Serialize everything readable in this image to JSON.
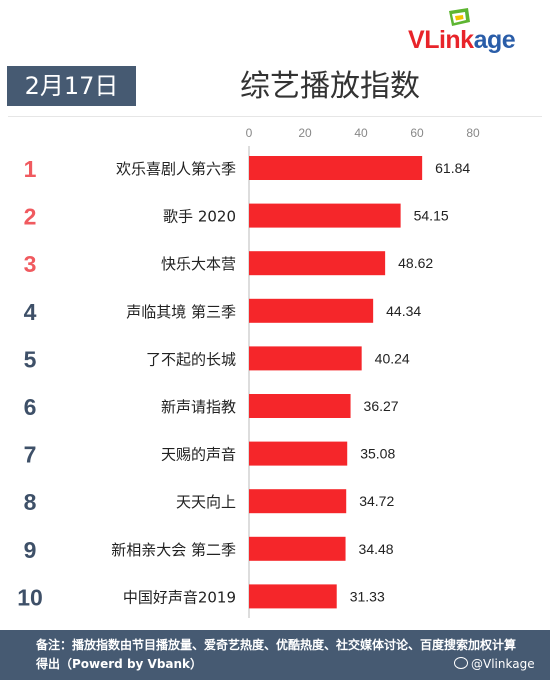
{
  "brand": {
    "logo_text": "VLinkage",
    "logo_parts": {
      "v": "V",
      "link": "Link",
      "age": "age"
    },
    "colors": {
      "v": "#e8242a",
      "link": "#e8242a",
      "age": "#2a5da8",
      "mark_green": "#5db531",
      "mark_yellow": "#f2c200"
    }
  },
  "header": {
    "date": "2月17日",
    "title": "综艺播放指数"
  },
  "chart_data": {
    "type": "bar",
    "orientation": "horizontal",
    "xlim": [
      0,
      80
    ],
    "xticks": [
      0,
      20,
      40,
      60,
      80
    ],
    "grid": false,
    "bar_color": "#f5262a",
    "rank_colors": {
      "top3": "#f05a5f",
      "rest": "#3e5068"
    },
    "ranks": [
      "1",
      "2",
      "3",
      "4",
      "5",
      "6",
      "7",
      "8",
      "9",
      "10"
    ],
    "categories": [
      "欢乐喜剧人第六季",
      "歌手 2020",
      "快乐大本营",
      "声临其境 第三季",
      "了不起的长城",
      "新声请指教",
      "天赐的声音",
      "天天向上",
      "新相亲大会 第二季",
      "中国好声音2019"
    ],
    "values": [
      61.84,
      54.15,
      48.62,
      44.34,
      40.24,
      36.27,
      35.08,
      34.72,
      34.48,
      31.33
    ],
    "value_labels": [
      "61.84",
      "54.15",
      "48.62",
      "44.34",
      "40.24",
      "36.27",
      "35.08",
      "34.72",
      "34.48",
      "31.33"
    ]
  },
  "footer": {
    "note": "备注：播放指数由节目播放量、爱奇艺热度、优酷热度、社交媒体讨论、百度搜索加权计算得出（Powerd by Vbank）",
    "weibo": "@Vlinkage",
    "colors": {
      "bg": "#465a72"
    }
  }
}
